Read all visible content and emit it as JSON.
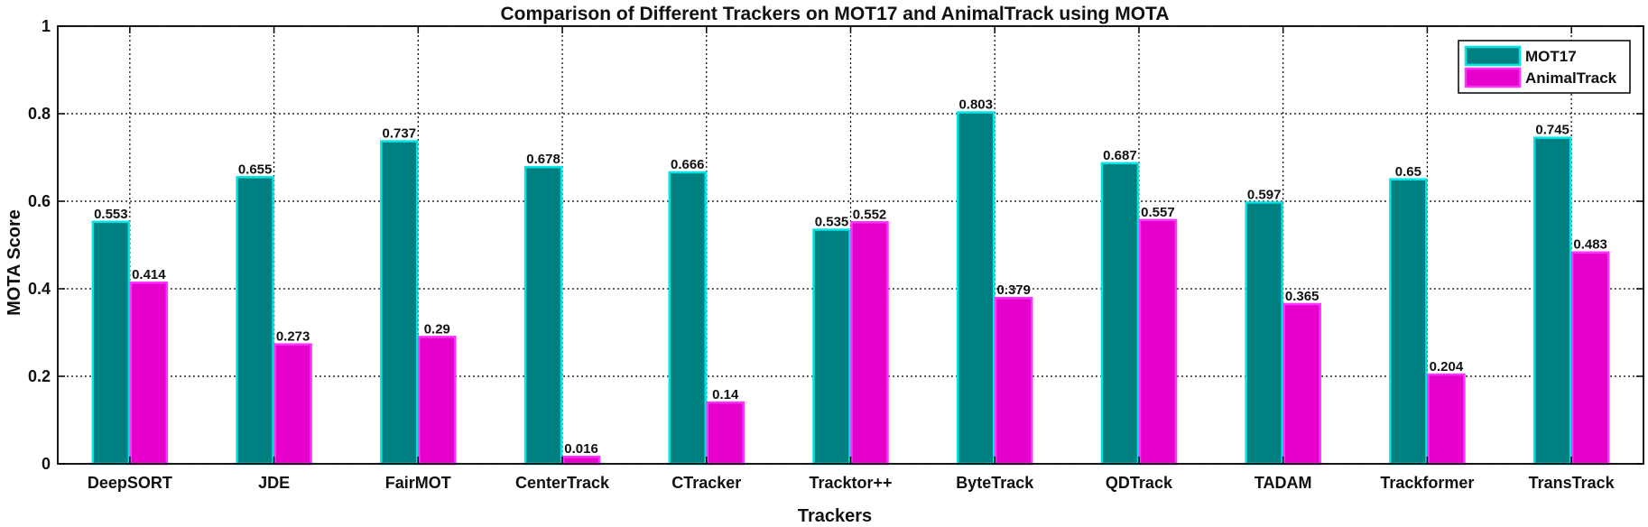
{
  "chart_data": {
    "type": "bar",
    "title": "Comparison of Different Trackers on MOT17 and AnimalTrack using MOTA",
    "xlabel": "Trackers",
    "ylabel": "MOTA Score",
    "ylim": [
      0,
      1
    ],
    "yticks": [
      0,
      0.2,
      0.4,
      0.6,
      0.8,
      1
    ],
    "ytick_labels": [
      "0",
      "0.2",
      "0.4",
      "0.6",
      "0.8",
      "1"
    ],
    "grid": true,
    "legend_position": "top-right",
    "categories": [
      "DeepSORT",
      "JDE",
      "FairMOT",
      "CenterTrack",
      "CTracker",
      "Tracktor++",
      "ByteTrack",
      "QDTrack",
      "TADAM",
      "Trackformer",
      "TransTrack"
    ],
    "series": [
      {
        "name": "MOT17",
        "color": "#008080",
        "edge_color": "#00E5E5",
        "values": [
          0.553,
          0.655,
          0.737,
          0.678,
          0.666,
          0.535,
          0.803,
          0.687,
          0.597,
          0.65,
          0.745
        ],
        "labels": [
          "0.553",
          "0.655",
          "0.737",
          "0.678",
          "0.666",
          "0.535",
          "0.803",
          "0.687",
          "0.597",
          "0.65",
          "0.745"
        ]
      },
      {
        "name": "AnimalTrack",
        "color": "#E600CC",
        "edge_color": "#FF33FF",
        "values": [
          0.414,
          0.273,
          0.29,
          0.016,
          0.14,
          0.552,
          0.379,
          0.557,
          0.365,
          0.204,
          0.483
        ],
        "labels": [
          "0.414",
          "0.273",
          "0.29",
          "0.016",
          "0.14",
          "0.552",
          "0.379",
          "0.557",
          "0.365",
          "0.204",
          "0.483"
        ]
      }
    ]
  }
}
